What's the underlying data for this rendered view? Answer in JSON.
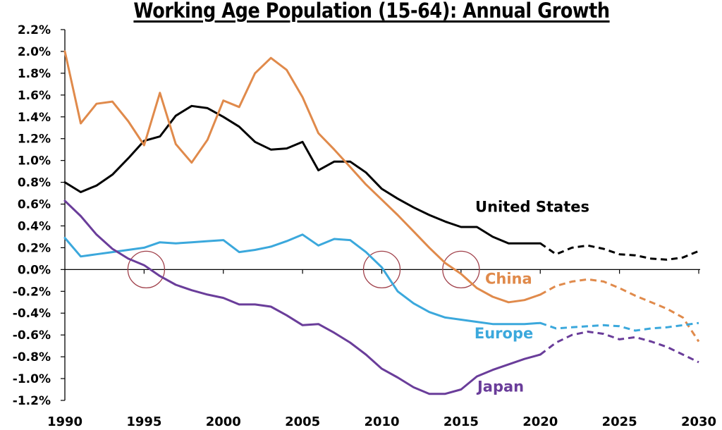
{
  "chart_data": {
    "type": "line",
    "title": "Working Age Population (15-64): Annual Growth",
    "xlabel": "",
    "ylabel": "",
    "xlim": [
      1990,
      2030
    ],
    "ylim": [
      -1.2,
      2.2
    ],
    "grid": false,
    "y_ticks": [
      2.2,
      2.0,
      1.8,
      1.6,
      1.4,
      1.2,
      1.0,
      0.8,
      0.6,
      0.4,
      0.2,
      0.0,
      -0.2,
      -0.4,
      -0.6,
      -0.8,
      -1.0,
      -1.2
    ],
    "y_tick_labels": [
      "2.2%",
      "2.0%",
      "1.8%",
      "1.6%",
      "1.4%",
      "1.2%",
      "1.0%",
      "0.8%",
      "0.6%",
      "0.4%",
      "0.2%",
      "0.0%",
      "-0.2%",
      "-0.4%",
      "-0.6%",
      "-0.8%",
      "-1.0%",
      "-1.2%"
    ],
    "x_ticks": [
      1990,
      1995,
      2000,
      2005,
      2010,
      2015,
      2020,
      2025,
      2030
    ],
    "x_tick_labels": [
      "1990",
      "1995",
      "2000",
      "2005",
      "2010",
      "2015",
      "2020",
      "2025",
      "2030"
    ],
    "projection_start": 2020,
    "series": [
      {
        "name": "United States",
        "color": "#000000",
        "x": [
          1990,
          1991,
          1992,
          1993,
          1994,
          1995,
          1996,
          1997,
          1998,
          1999,
          2000,
          2001,
          2002,
          2003,
          2004,
          2005,
          2006,
          2007,
          2008,
          2009,
          2010,
          2011,
          2012,
          2013,
          2014,
          2015,
          2016,
          2017,
          2018,
          2019,
          2020,
          2021,
          2022,
          2023,
          2024,
          2025,
          2026,
          2027,
          2028,
          2029,
          2030
        ],
        "values": [
          0.8,
          0.71,
          0.77,
          0.87,
          1.02,
          1.18,
          1.22,
          1.41,
          1.5,
          1.48,
          1.4,
          1.31,
          1.17,
          1.1,
          1.11,
          1.17,
          0.91,
          0.99,
          0.99,
          0.89,
          0.74,
          0.65,
          0.57,
          0.5,
          0.44,
          0.39,
          0.39,
          0.3,
          0.24,
          0.24,
          0.24,
          0.14,
          0.2,
          0.22,
          0.19,
          0.14,
          0.13,
          0.1,
          0.09,
          0.11,
          0.17
        ]
      },
      {
        "name": "China",
        "color": "#E08A4B",
        "x": [
          1990,
          1991,
          1992,
          1993,
          1994,
          1995,
          1996,
          1997,
          1998,
          1999,
          2000,
          2001,
          2002,
          2003,
          2004,
          2005,
          2006,
          2007,
          2008,
          2009,
          2010,
          2011,
          2012,
          2013,
          2014,
          2015,
          2016,
          2017,
          2018,
          2019,
          2020,
          2021,
          2022,
          2023,
          2024,
          2025,
          2026,
          2027,
          2028,
          2029,
          2030
        ],
        "values": [
          2.0,
          1.34,
          1.52,
          1.54,
          1.36,
          1.14,
          1.62,
          1.15,
          0.98,
          1.19,
          1.55,
          1.49,
          1.8,
          1.94,
          1.83,
          1.58,
          1.25,
          1.1,
          0.94,
          0.78,
          0.64,
          0.5,
          0.35,
          0.2,
          0.06,
          -0.04,
          -0.17,
          -0.25,
          -0.3,
          -0.28,
          -0.23,
          -0.15,
          -0.11,
          -0.09,
          -0.11,
          -0.17,
          -0.24,
          -0.3,
          -0.36,
          -0.44,
          -0.66
        ]
      },
      {
        "name": "Europe",
        "color": "#3BA8DC",
        "x": [
          1990,
          1991,
          1992,
          1993,
          1994,
          1995,
          1996,
          1997,
          1998,
          1999,
          2000,
          2001,
          2002,
          2003,
          2004,
          2005,
          2006,
          2007,
          2008,
          2009,
          2010,
          2011,
          2012,
          2013,
          2014,
          2015,
          2016,
          2017,
          2018,
          2019,
          2020,
          2021,
          2022,
          2023,
          2024,
          2025,
          2026,
          2027,
          2028,
          2029,
          2030
        ],
        "values": [
          0.29,
          0.12,
          0.14,
          0.16,
          0.18,
          0.2,
          0.25,
          0.24,
          0.25,
          0.26,
          0.27,
          0.16,
          0.18,
          0.21,
          0.26,
          0.32,
          0.22,
          0.28,
          0.27,
          0.16,
          0.02,
          -0.2,
          -0.31,
          -0.39,
          -0.44,
          -0.46,
          -0.48,
          -0.5,
          -0.5,
          -0.5,
          -0.49,
          -0.54,
          -0.53,
          -0.52,
          -0.51,
          -0.52,
          -0.56,
          -0.54,
          -0.53,
          -0.51,
          -0.49
        ]
      },
      {
        "name": "Japan",
        "color": "#6A3D9A",
        "x": [
          1990,
          1991,
          1992,
          1993,
          1994,
          1995,
          1996,
          1997,
          1998,
          1999,
          2000,
          2001,
          2002,
          2003,
          2004,
          2005,
          2006,
          2007,
          2008,
          2009,
          2010,
          2011,
          2012,
          2013,
          2014,
          2015,
          2016,
          2017,
          2018,
          2019,
          2020,
          2021,
          2022,
          2023,
          2024,
          2025,
          2026,
          2027,
          2028,
          2029,
          2030
        ],
        "values": [
          0.63,
          0.49,
          0.32,
          0.19,
          0.1,
          0.04,
          -0.06,
          -0.14,
          -0.19,
          -0.23,
          -0.26,
          -0.32,
          -0.32,
          -0.34,
          -0.42,
          -0.51,
          -0.5,
          -0.58,
          -0.67,
          -0.78,
          -0.91,
          -0.99,
          -1.08,
          -1.14,
          -1.14,
          -1.1,
          -0.98,
          -0.92,
          -0.87,
          -0.82,
          -0.78,
          -0.67,
          -0.6,
          -0.57,
          -0.59,
          -0.64,
          -0.62,
          -0.66,
          -0.71,
          -0.78,
          -0.85
        ]
      }
    ],
    "annotations": [
      {
        "type": "circle",
        "x": 1995,
        "y": 0.0,
        "color": "#A0404A"
      },
      {
        "type": "circle",
        "x": 2010,
        "y": 0.0,
        "color": "#A0404A"
      },
      {
        "type": "circle",
        "x": 2015,
        "y": 0.0,
        "color": "#A0404A"
      }
    ],
    "series_labels": [
      {
        "text": "United States",
        "x": 2019.5,
        "y": 0.53,
        "color": "#000000"
      },
      {
        "text": "China",
        "x": 2018.0,
        "y": -0.13,
        "color": "#E08A4B"
      },
      {
        "text": "Europe",
        "x": 2017.7,
        "y": -0.63,
        "color": "#3BA8DC"
      },
      {
        "text": "Japan",
        "x": 2017.5,
        "y": -1.12,
        "color": "#6A3D9A"
      }
    ]
  }
}
